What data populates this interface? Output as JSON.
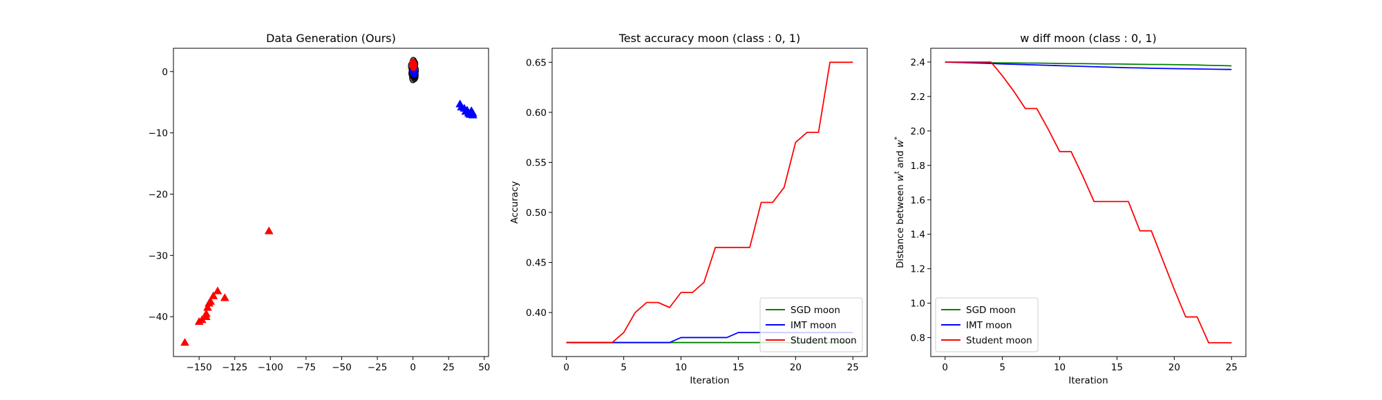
{
  "colors": {
    "SGD moon": "#008000",
    "IMT moon": "#0000ff",
    "Student moon": "#ff0000",
    "cluster": "#000000"
  },
  "chart_data": [
    {
      "type": "scatter",
      "title": "Data Generation (Ours)",
      "xlabel": "",
      "ylabel": "",
      "xlim": [
        -168,
        53
      ],
      "ylim": [
        -46.5,
        3.8
      ],
      "xticks": [
        -150,
        -125,
        -100,
        -75,
        -50,
        -25,
        0,
        25,
        50
      ],
      "yticks": [
        0,
        -10,
        -20,
        -30,
        -40
      ],
      "grid": false,
      "series": [
        {
          "marker": "triangle",
          "color": "#ff0000",
          "points": [
            [
              -160,
              -44.2
            ],
            [
              -150,
              -40.8
            ],
            [
              -148,
              -40.5
            ],
            [
              -145,
              -40
            ],
            [
              -145,
              -39.5
            ],
            [
              -144,
              -38.5
            ],
            [
              -143,
              -37.8
            ],
            [
              -142,
              -37.5
            ],
            [
              -140,
              -36.6
            ],
            [
              -137,
              -35.8
            ],
            [
              -132,
              -36.9
            ],
            [
              -101,
              -26
            ]
          ]
        },
        {
          "marker": "triangle",
          "color": "#0000ff",
          "points": [
            [
              33,
              -5.3
            ],
            [
              34,
              -5.8
            ],
            [
              36,
              -6
            ],
            [
              37,
              -6.5
            ],
            [
              38,
              -6.3
            ],
            [
              39,
              -6.8
            ],
            [
              40,
              -7
            ],
            [
              41,
              -6.4
            ],
            [
              42,
              -7.1
            ],
            [
              42,
              -6.8
            ]
          ]
        },
        {
          "marker": "circle",
          "color": "#000000",
          "points": [
            [
              -0.5,
              -0.3
            ],
            [
              0.5,
              0.4
            ],
            [
              1,
              1.2
            ],
            [
              1.2,
              -0.8
            ],
            [
              0.3,
              1.5
            ],
            [
              -0.8,
              0.9
            ],
            [
              1.5,
              0.2
            ],
            [
              0,
              -1
            ],
            [
              0.8,
              -0.2
            ],
            [
              -0.3,
              0.1
            ],
            [
              0.6,
              0.8
            ],
            [
              1.3,
              -0.5
            ]
          ]
        },
        {
          "marker": "circle",
          "color": "#0000ff",
          "points": [
            [
              0.5,
              0.2
            ],
            [
              0.8,
              -0.1
            ]
          ]
        },
        {
          "marker": "circle",
          "color": "#ff0000",
          "points": [
            [
              0,
              1.2
            ],
            [
              0.3,
              1
            ]
          ]
        }
      ]
    },
    {
      "type": "line",
      "title": "Test accuracy moon (class : 0, 1)",
      "xlabel": "Iteration",
      "ylabel": "Accuracy",
      "xlim": [
        -1.25,
        26.25
      ],
      "ylim": [
        0.356,
        0.664
      ],
      "xticks": [
        0,
        5,
        10,
        15,
        20,
        25
      ],
      "yticks": [
        0.4,
        0.45,
        0.5,
        0.55,
        0.6,
        0.65
      ],
      "ytick_labels": [
        "0.40",
        "0.45",
        "0.50",
        "0.55",
        "0.60",
        "0.65"
      ],
      "grid": false,
      "legend": "lower right",
      "x": [
        0,
        1,
        2,
        3,
        4,
        5,
        6,
        7,
        8,
        9,
        10,
        11,
        12,
        13,
        14,
        15,
        16,
        17,
        18,
        19,
        20,
        21,
        22,
        23,
        24,
        25
      ],
      "series": [
        {
          "name": "SGD moon",
          "values": [
            0.37,
            0.37,
            0.37,
            0.37,
            0.37,
            0.37,
            0.37,
            0.37,
            0.37,
            0.37,
            0.37,
            0.37,
            0.37,
            0.37,
            0.37,
            0.37,
            0.37,
            0.37,
            0.37,
            0.37,
            0.37,
            0.37,
            0.37,
            0.37,
            0.37,
            0.37
          ]
        },
        {
          "name": "IMT moon",
          "values": [
            0.37,
            0.37,
            0.37,
            0.37,
            0.37,
            0.37,
            0.37,
            0.37,
            0.37,
            0.37,
            0.375,
            0.375,
            0.375,
            0.375,
            0.375,
            0.38,
            0.38,
            0.38,
            0.38,
            0.38,
            0.38,
            0.38,
            0.38,
            0.38,
            0.38,
            0.38
          ]
        },
        {
          "name": "Student moon",
          "values": [
            0.37,
            0.37,
            0.37,
            0.37,
            0.37,
            0.38,
            0.4,
            0.41,
            0.41,
            0.405,
            0.42,
            0.42,
            0.43,
            0.465,
            0.465,
            0.465,
            0.465,
            0.51,
            0.51,
            0.525,
            0.57,
            0.58,
            0.58,
            0.65,
            0.65,
            0.65
          ]
        }
      ]
    },
    {
      "type": "line",
      "title": "w diff moon (class : 0, 1)",
      "xlabel": "Iteration",
      "ylabel_parts": [
        "Distance between ",
        "w",
        "t",
        " and ",
        "w",
        "*"
      ],
      "xlim": [
        -1.25,
        26.25
      ],
      "ylim": [
        0.69,
        2.48
      ],
      "xticks": [
        0,
        5,
        10,
        15,
        20,
        25
      ],
      "yticks": [
        0.8,
        1.0,
        1.2,
        1.4,
        1.6,
        1.8,
        2.0,
        2.2,
        2.4
      ],
      "ytick_labels": [
        "0.8",
        "1.0",
        "1.2",
        "1.4",
        "1.6",
        "1.8",
        "2.0",
        "2.2",
        "2.4"
      ],
      "grid": false,
      "legend": "lower left",
      "x": [
        0,
        1,
        2,
        3,
        4,
        5,
        6,
        7,
        8,
        9,
        10,
        11,
        12,
        13,
        14,
        15,
        16,
        17,
        18,
        19,
        20,
        21,
        22,
        23,
        24,
        25
      ],
      "series": [
        {
          "name": "SGD moon",
          "values": [
            2.4,
            2.399,
            2.398,
            2.397,
            2.396,
            2.395,
            2.395,
            2.394,
            2.394,
            2.393,
            2.392,
            2.391,
            2.391,
            2.39,
            2.389,
            2.389,
            2.388,
            2.387,
            2.386,
            2.386,
            2.385,
            2.384,
            2.383,
            2.381,
            2.38,
            2.378
          ]
        },
        {
          "name": "IMT moon",
          "values": [
            2.4,
            2.398,
            2.396,
            2.394,
            2.392,
            2.389,
            2.387,
            2.385,
            2.383,
            2.381,
            2.379,
            2.377,
            2.375,
            2.373,
            2.371,
            2.369,
            2.367,
            2.366,
            2.364,
            2.363,
            2.362,
            2.361,
            2.36,
            2.359,
            2.358,
            2.357
          ]
        },
        {
          "name": "Student moon",
          "values": [
            2.4,
            2.4,
            2.4,
            2.4,
            2.4,
            2.32,
            2.23,
            2.13,
            2.13,
            2.01,
            1.88,
            1.88,
            1.74,
            1.59,
            1.59,
            1.59,
            1.59,
            1.42,
            1.42,
            1.25,
            1.08,
            0.92,
            0.92,
            0.77,
            0.77,
            0.77
          ]
        }
      ]
    }
  ]
}
